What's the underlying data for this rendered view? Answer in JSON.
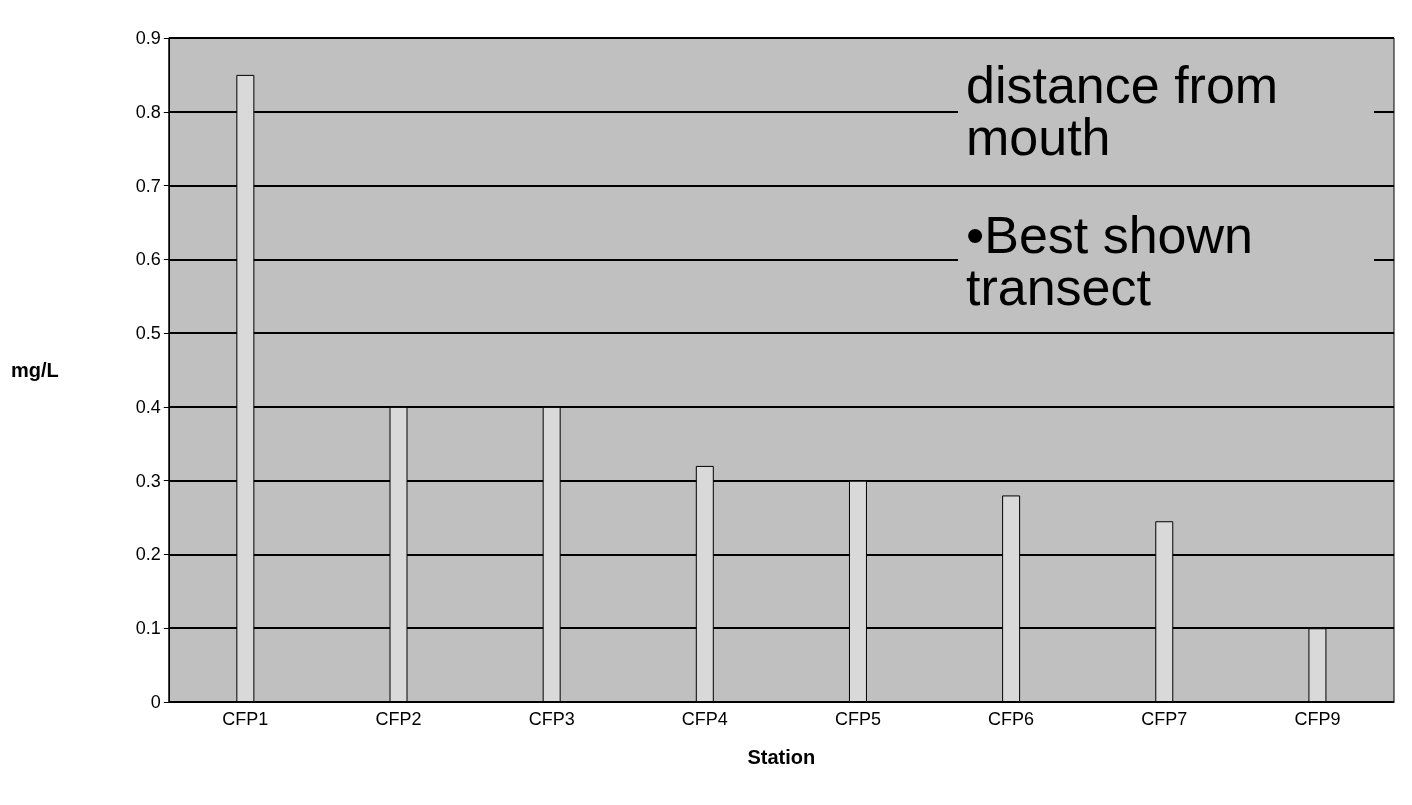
{
  "chart_data": {
    "type": "bar",
    "xlabel": "Station",
    "ylabel": "mg/L",
    "categories": [
      "CFP1",
      "CFP2",
      "CFP3",
      "CFP4",
      "CFP5",
      "CFP6",
      "CFP7",
      "CFP9"
    ],
    "values": [
      0.85,
      0.4,
      0.4,
      0.32,
      0.3,
      0.28,
      0.245,
      0.1
    ],
    "color": "#d9d9d9",
    "ylim": [
      0,
      0.9
    ],
    "yticks": [
      0,
      0.1,
      0.2,
      0.3,
      0.4,
      0.5,
      0.6,
      0.7,
      0.8,
      0.9
    ],
    "grid": "y",
    "annotations": [
      "distance from mouth",
      "•Best shown transect"
    ]
  }
}
